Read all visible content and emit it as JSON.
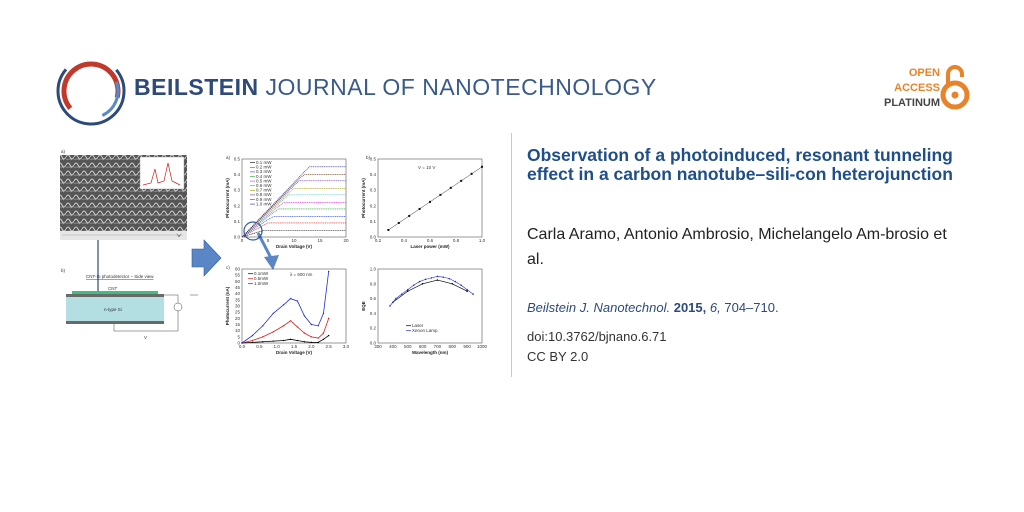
{
  "header": {
    "journal_bold": "BEILSTEIN",
    "journal_rest": "JOURNAL OF NANOTECHNOLOGY",
    "oa_line1": "OPEN",
    "oa_line2": "ACCESS",
    "oa_line3": "PLATINUM",
    "logo_icon": "beilstein-ring-logo",
    "lock_icon": "open-access-lock-icon",
    "colors": {
      "brand_blue": "#2d4a78",
      "oa_orange": "#e8832a",
      "logo_red": "#c0392b"
    }
  },
  "article": {
    "title": "Observation of a photoinduced, resonant tunneling effect in a carbon nanotube–sili-con heterojunction",
    "authors": "Carla Aramo, Antonio Ambrosio, Michelangelo Am-brosio et al.",
    "citation_journal": "Beilstein J. Nanotechnol.",
    "citation_year": "2015,",
    "citation_volume": "6,",
    "citation_pages": "704–710.",
    "doi": "doi:10.3762/bjnano.6.71",
    "license": "CC BY 2.0"
  },
  "figure": {
    "panel_labels": {
      "a_left": "a)",
      "b_left": "b)",
      "a_right": "a)",
      "b_right": "b)",
      "c_right": "c)"
    },
    "device_title": "CNT-Si photodetector  –  Side view",
    "device_layers": {
      "cnt": "CNT",
      "si": "n-type Si",
      "voltage": "V"
    },
    "chart_data": [
      {
        "type": "line",
        "xlabel": "Drain Voltage (V)",
        "ylabel": "Photocurrent (mA)",
        "xlim": [
          0,
          20
        ],
        "ylim": [
          0,
          0.5
        ],
        "xticks": [
          "0",
          "5",
          "10",
          "15",
          "20"
        ],
        "yticks": [
          "0.0",
          "0.1",
          "0.2",
          "0.3",
          "0.4",
          "0.5"
        ],
        "legend": [
          "0.1 mW",
          "0.2 mW",
          "0.3 mW",
          "0.4 mW",
          "0.5 mW",
          "0.6 mW",
          "0.7 mW",
          "0.8 mW",
          "0.9 mW",
          "1.0 mW"
        ],
        "series_colors": [
          "#000000",
          "#e02020",
          "#2040e0",
          "#20a020",
          "#e020e0",
          "#20b0b0",
          "#a0a000",
          "#7030a0",
          "#7a3a1a",
          "#2a2a90"
        ],
        "saturation": [
          0.04,
          0.09,
          0.13,
          0.18,
          0.22,
          0.27,
          0.31,
          0.36,
          0.4,
          0.45
        ]
      },
      {
        "type": "scatter",
        "annotation": "V = 10 V",
        "xlabel": "Laser power (mW)",
        "ylabel": "Photocurrent (mA)",
        "xlim": [
          0,
          1.0
        ],
        "ylim": [
          0,
          0.5
        ],
        "xticks": [
          "0.2",
          "0.4",
          "0.6",
          "0.8",
          "1.0"
        ],
        "yticks": [
          "0.0",
          "0.1",
          "0.2",
          "0.3",
          "0.4",
          "0.5"
        ],
        "x": [
          0.1,
          0.2,
          0.3,
          0.4,
          0.5,
          0.6,
          0.7,
          0.8,
          0.9,
          1.0
        ],
        "y": [
          0.045,
          0.09,
          0.135,
          0.18,
          0.225,
          0.27,
          0.315,
          0.36,
          0.405,
          0.45
        ]
      },
      {
        "type": "line",
        "annotation": "λ = 600 nm",
        "xlabel": "Drain Voltage (V)",
        "ylabel": "Photocurrent (nA)",
        "xlim": [
          0,
          3.0
        ],
        "ylim": [
          0,
          60
        ],
        "xticks": [
          "0.0",
          "0.5",
          "1.0",
          "1.5",
          "2.0",
          "2.5",
          "3.0"
        ],
        "yticks": [
          "0",
          "5",
          "10",
          "15",
          "20",
          "25",
          "30",
          "35",
          "40",
          "45",
          "50",
          "55",
          "60"
        ],
        "legend": [
          "0.1mW",
          "0.5mW",
          "1.0mW"
        ],
        "series_colors": [
          "#000000",
          "#e02020",
          "#2030d0"
        ],
        "x": [
          0,
          0.3,
          0.6,
          0.9,
          1.2,
          1.4,
          1.6,
          1.8,
          2.0,
          2.2,
          2.35,
          2.5
        ],
        "series": [
          {
            "name": "0.1mW",
            "values": [
              0,
              0.5,
              1,
              1.5,
              2,
              3,
              2,
              1,
              0.5,
              0.5,
              3,
              6
            ]
          },
          {
            "name": "0.5mW",
            "values": [
              0,
              2,
              5,
              9,
              14,
              18,
              13,
              8,
              5,
              4,
              8,
              20
            ]
          },
          {
            "name": "1.0mW",
            "values": [
              0,
              6,
              14,
              24,
              31,
              36,
              34,
              22,
              15,
              14,
              24,
              58
            ]
          }
        ]
      },
      {
        "type": "scatter",
        "xlabel": "Wavelength (nm)",
        "ylabel": "EQE",
        "xlim": [
          300,
          1000
        ],
        "ylim": [
          0,
          1.0
        ],
        "xticks": [
          "300",
          "400",
          "500",
          "600",
          "700",
          "800",
          "900",
          "1000"
        ],
        "yticks": [
          "0.0",
          "0.2",
          "0.4",
          "0.6",
          "0.8",
          "1.0"
        ],
        "legend": [
          "Laser",
          "Xenon Lamp"
        ],
        "series_colors": [
          "#000000",
          "#2030d0"
        ],
        "series": [
          {
            "name": "Laser",
            "x": [
              400,
              500,
              600,
              700,
              800,
              900
            ],
            "values": [
              0.55,
              0.7,
              0.8,
              0.85,
              0.8,
              0.7
            ]
          },
          {
            "name": "Xenon Lamp",
            "x": [
              380,
              420,
              460,
              500,
              540,
              580,
              620,
              660,
              700,
              740,
              780,
              820,
              860,
              900,
              940
            ],
            "values": [
              0.5,
              0.6,
              0.66,
              0.72,
              0.78,
              0.83,
              0.86,
              0.88,
              0.9,
              0.89,
              0.87,
              0.83,
              0.78,
              0.72,
              0.66
            ]
          }
        ]
      }
    ]
  }
}
